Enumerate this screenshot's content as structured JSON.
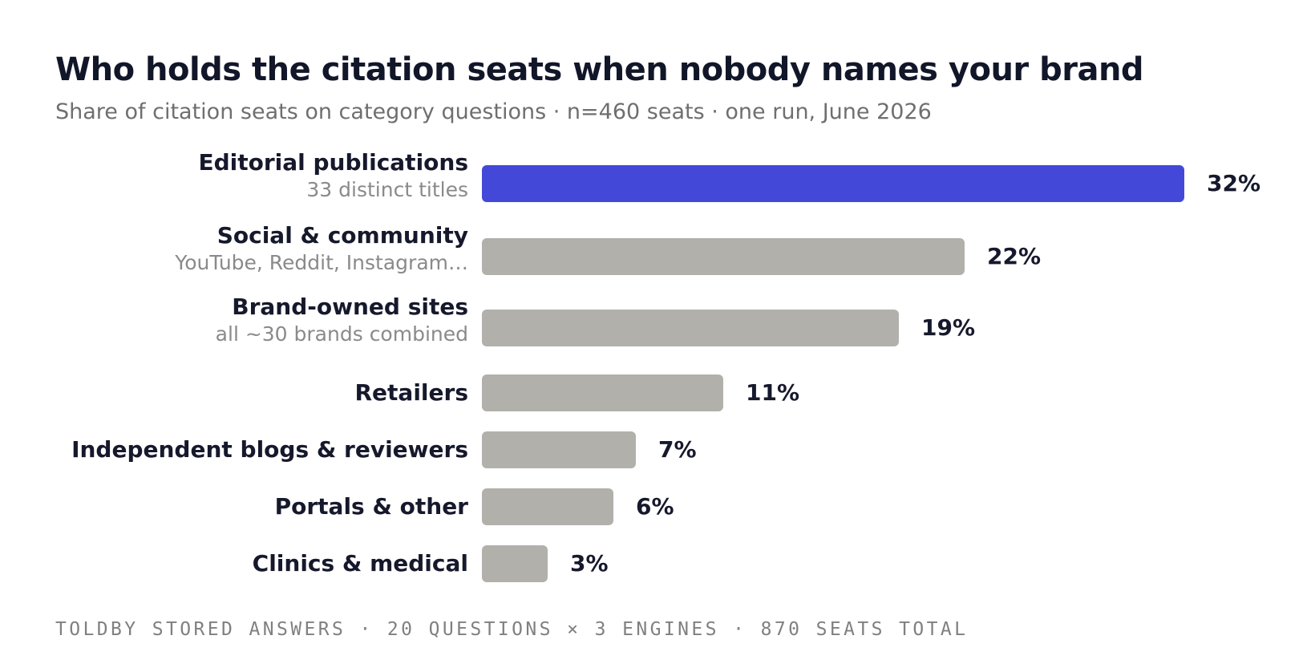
{
  "title": "Who holds the citation seats when nobody names your brand",
  "subtitle": "Share of citation seats on category questions · n=460 seats · one run, June 2026",
  "footer": "TOLDBY STORED ANSWERS · 20 QUESTIONS × 3 ENGINES · 870 SEATS TOTAL",
  "colors": {
    "highlight": "#4348d8",
    "default": "#b1b0ab",
    "text": "#16192c",
    "muted": "#8a8a8a"
  },
  "chart_data": {
    "type": "bar",
    "orientation": "horizontal",
    "title": "Who holds the citation seats when nobody names your brand",
    "subtitle": "Share of citation seats on category questions · n=460 seats · one run, June 2026",
    "unit": "%",
    "xlim": [
      0,
      32
    ],
    "grid": false,
    "categories": [
      "Editorial publications",
      "Social & community",
      "Brand-owned sites",
      "Retailers",
      "Independent blogs & reviewers",
      "Portals & other",
      "Clinics & medical"
    ],
    "sublabels": [
      "33 distinct titles",
      "YouTube, Reddit, Instagram…",
      "all ~30 brands combined",
      "",
      "",
      "",
      ""
    ],
    "values": [
      32,
      22,
      19,
      11,
      7,
      6,
      3
    ],
    "value_labels": [
      "32%",
      "22%",
      "19%",
      "11%",
      "7%",
      "6%",
      "3%"
    ],
    "highlighted": [
      true,
      false,
      false,
      false,
      false,
      false,
      false
    ]
  }
}
